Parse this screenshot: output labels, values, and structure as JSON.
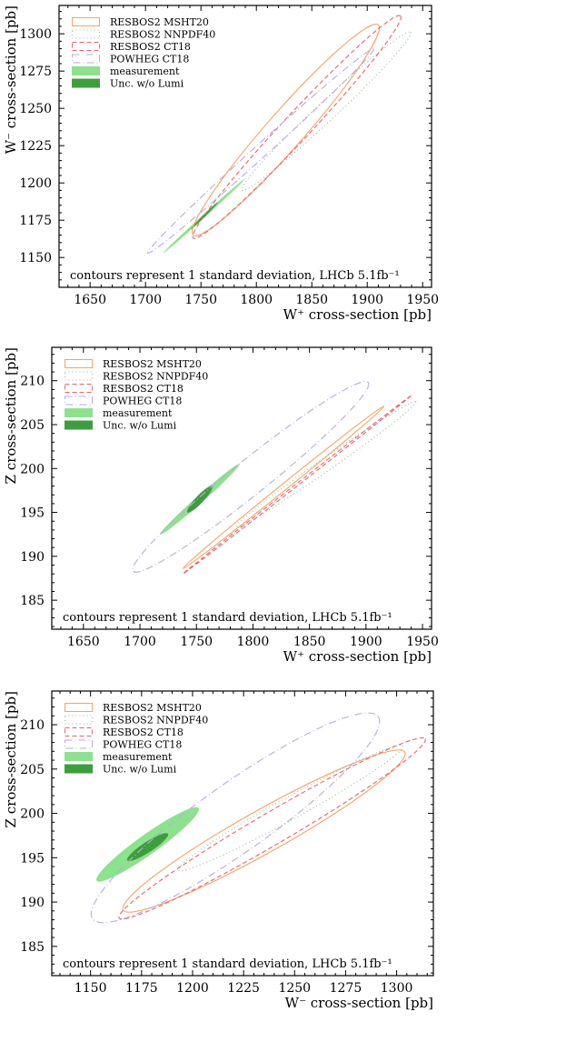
{
  "chart_data": [
    {
      "type": "scatter",
      "subtype": "covariance-ellipses",
      "xlabel": "W⁺ cross-section [pb]",
      "ylabel": "W⁻ cross-section [pb]",
      "xlim": [
        1622,
        1958
      ],
      "ylim": [
        1130,
        1319
      ],
      "xticks": [
        1650,
        1700,
        1750,
        1800,
        1850,
        1900,
        1950
      ],
      "yticks": [
        1150,
        1175,
        1200,
        1225,
        1250,
        1275,
        1300
      ],
      "annotation": "contours represent 1 standard deviation, LHCb 5.1fb⁻¹",
      "legend": [
        {
          "label": "RESBOS2 MSHT20",
          "kind": "line",
          "color": "#f4a460",
          "dash": "none"
        },
        {
          "label": "RESBOS2 NNPDF40",
          "kind": "line",
          "color": "#8fbc8f",
          "dash": "1,3"
        },
        {
          "label": "RESBOS2 CT18",
          "kind": "line",
          "color": "#e9636a",
          "dash": "5,3"
        },
        {
          "label": "POWHEG CT18",
          "kind": "line",
          "color": "#b9a9e6",
          "dash": "8,3,1,3"
        },
        {
          "label": "measurement",
          "kind": "fill",
          "color": "#8de28d"
        },
        {
          "label": "Unc. w/o Lumi",
          "kind": "fill",
          "color": "#3e9e3e"
        }
      ],
      "series": [
        {
          "name": "RESBOS2 MSHT20",
          "color": "#f4a460",
          "dash": "none",
          "fill": false,
          "ellipse": [
            [
              1827,
              1235
            ],
            [
              1743,
              1165
            ],
            [
              1910,
              1306
            ],
            [
              1906,
              1283
            ],
            [
              1752,
              1186
            ]
          ]
        },
        {
          "name": "RESBOS2 NNPDF40",
          "color": "#8fbc8f",
          "dash": "1,3",
          "fill": false,
          "ellipse": [
            [
              1863,
              1248
            ],
            [
              1787,
              1195
            ],
            [
              1939,
              1301
            ],
            [
              1933,
              1288
            ],
            [
              1793,
              1208
            ]
          ]
        },
        {
          "name": "RESBOS2 CT18",
          "color": "#e9636a",
          "dash": "5,3",
          "fill": false,
          "ellipse": [
            [
              1837,
              1238
            ],
            [
              1743,
              1163
            ],
            [
              1930,
              1312
            ],
            [
              1934,
              1302
            ],
            [
              1740,
              1173
            ]
          ]
        },
        {
          "name": "POWHEG CT18",
          "color": "#b9a9e6",
          "dash": "8,3,1,3",
          "fill": false,
          "ellipse": [
            [
              1804,
              1221
            ],
            [
              1702,
              1153
            ],
            [
              1906,
              1290
            ],
            [
              1898,
              1290
            ],
            [
              1710,
              1153
            ]
          ]
        },
        {
          "name": "measurement",
          "color": "#8de28d",
          "fill": true,
          "ellipse": [
            [
              1753,
              1178
            ],
            [
              1716,
              1153
            ],
            [
              1790,
              1203
            ],
            [
              1788,
              1203
            ],
            [
              1718,
              1153
            ]
          ]
        },
        {
          "name": "Unc. w/o Lumi",
          "color": "#3e9e3e",
          "fill": true,
          "ellipse": [
            [
              1753,
              1178
            ],
            [
              1741,
              1169
            ],
            [
              1765,
              1187
            ],
            [
              1765,
              1187
            ],
            [
              1741,
              1169
            ]
          ]
        }
      ]
    },
    {
      "type": "scatter",
      "subtype": "covariance-ellipses",
      "xlabel": "W⁺ cross-section [pb]",
      "ylabel": "Z cross-section [pb]",
      "xlim": [
        1622,
        1958
      ],
      "ylim": [
        181.7,
        213.8
      ],
      "xticks": [
        1650,
        1700,
        1750,
        1800,
        1850,
        1900,
        1950
      ],
      "yticks": [
        185,
        190,
        195,
        200,
        205,
        210
      ],
      "annotation": "contours represent 1 standard deviation, LHCb 5.1fb⁻¹",
      "legend": [
        {
          "label": "RESBOS2 MSHT20",
          "kind": "line",
          "color": "#f4a460",
          "dash": "none"
        },
        {
          "label": "RESBOS2 NNPDF40",
          "kind": "line",
          "color": "#8fbc8f",
          "dash": "1,3"
        },
        {
          "label": "RESBOS2 CT18",
          "kind": "line",
          "color": "#e9636a",
          "dash": "5,3"
        },
        {
          "label": "POWHEG CT18",
          "kind": "line",
          "color": "#b9a9e6",
          "dash": "8,3,1,3"
        },
        {
          "label": "measurement",
          "kind": "fill",
          "color": "#8de28d"
        },
        {
          "label": "Unc. w/o Lumi",
          "kind": "fill",
          "color": "#3e9e3e"
        }
      ],
      "series": [
        {
          "name": "RESBOS2 MSHT20",
          "color": "#f4a460",
          "dash": "none",
          "fill": false,
          "ellipse": [
            [
              1827,
              197.7
            ],
            [
              1738,
              188.6
            ],
            [
              1916,
              207.1
            ],
            [
              1913,
              207.1
            ],
            [
              1745,
              188.4
            ]
          ]
        },
        {
          "name": "RESBOS2 NNPDF40",
          "color": "#8fbc8f",
          "dash": "1,3",
          "fill": false,
          "ellipse": [
            [
              1864,
              200.6
            ],
            [
              1785,
              193.3
            ],
            [
              1944,
              207.6
            ],
            [
              1932,
              207.6
            ],
            [
              1791,
              193.1
            ]
          ]
        },
        {
          "name": "RESBOS2 CT18",
          "color": "#e9636a",
          "dash": "5,3",
          "fill": false,
          "ellipse": [
            [
              1839,
              198.3
            ],
            [
              1738,
              188.0
            ],
            [
              1940,
              208.3
            ],
            [
              1941,
              208.5
            ],
            [
              1742,
              187.9
            ]
          ]
        },
        {
          "name": "POWHEG CT18",
          "color": "#b9a9e6",
          "dash": "8,3,1,3",
          "fill": false,
          "ellipse": [
            [
              1798,
              199.1
            ],
            [
              1694,
              188.3
            ],
            [
              1902,
              209.8
            ],
            [
              1883,
              210.4
            ],
            [
              1710,
              187.9
            ]
          ]
        },
        {
          "name": "measurement",
          "color": "#8de28d",
          "fill": true,
          "ellipse": [
            [
              1753,
              196.5
            ],
            [
              1718,
              192.5
            ],
            [
              1788,
              200.5
            ],
            [
              1784,
              200.6
            ],
            [
              1722,
              192.3
            ]
          ]
        },
        {
          "name": "Unc. w/o Lumi",
          "color": "#3e9e3e",
          "fill": true,
          "ellipse": [
            [
              1753,
              196.5
            ],
            [
              1742,
              195.0
            ],
            [
              1764,
              198.0
            ],
            [
              1760,
              198.1
            ],
            [
              1746,
              194.9
            ]
          ]
        }
      ]
    },
    {
      "type": "scatter",
      "subtype": "covariance-ellipses",
      "xlabel": "W⁻ cross-section [pb]",
      "ylabel": "Z cross-section [pb]",
      "xlim": [
        1131,
        1318
      ],
      "ylim": [
        181.7,
        213.8
      ],
      "xticks": [
        1150,
        1175,
        1200,
        1225,
        1250,
        1275,
        1300
      ],
      "yticks": [
        185,
        190,
        195,
        200,
        205,
        210
      ],
      "annotation": "contours represent 1 standard deviation, LHCb 5.1fb⁻¹",
      "legend": [
        {
          "label": "RESBOS2 MSHT20",
          "kind": "line",
          "color": "#f4a460",
          "dash": "none"
        },
        {
          "label": "RESBOS2 NNPDF40",
          "kind": "line",
          "color": "#8fbc8f",
          "dash": "1,3"
        },
        {
          "label": "RESBOS2 CT18",
          "kind": "line",
          "color": "#e9636a",
          "dash": "5,3"
        },
        {
          "label": "POWHEG CT18",
          "kind": "line",
          "color": "#b9a9e6",
          "dash": "8,3,1,3"
        },
        {
          "label": "measurement",
          "kind": "fill",
          "color": "#8de28d"
        },
        {
          "label": "Unc. w/o Lumi",
          "kind": "fill",
          "color": "#3e9e3e"
        }
      ],
      "series": [
        {
          "name": "RESBOS2 MSHT20",
          "color": "#f4a460",
          "dash": "none",
          "fill": false,
          "ellipse": [
            [
              1235,
              198.0
            ],
            [
              1166,
              189.1
            ],
            [
              1304,
              206.9
            ],
            [
              1285,
              207.2
            ],
            [
              1185,
              188.8
            ]
          ]
        },
        {
          "name": "RESBOS2 NNPDF40",
          "color": "#8fbc8f",
          "dash": "1,3",
          "fill": false,
          "ellipse": [
            [
              1248,
              200.6
            ],
            [
              1193,
              193.6
            ],
            [
              1303,
              207.6
            ],
            [
              1295,
              208.0
            ],
            [
              1201,
              193.2
            ]
          ]
        },
        {
          "name": "RESBOS2 CT18",
          "color": "#e9636a",
          "dash": "5,3",
          "fill": false,
          "ellipse": [
            [
              1239,
              198.3
            ],
            [
              1164,
              188.2
            ],
            [
              1314,
              208.4
            ],
            [
              1300,
              208.6
            ],
            [
              1178,
              188.0
            ]
          ]
        },
        {
          "name": "POWHEG CT18",
          "color": "#b9a9e6",
          "dash": "8,3,1,3",
          "fill": false,
          "ellipse": [
            [
              1221,
              199.5
            ],
            [
              1151,
              188.1
            ],
            [
              1291,
              210.9
            ],
            [
              1262,
              210.9
            ],
            [
              1180,
              188.1
            ]
          ]
        },
        {
          "name": "measurement",
          "color": "#8de28d",
          "fill": true,
          "ellipse": [
            [
              1178,
              196.5
            ],
            [
              1153,
              192.4
            ],
            [
              1203,
              200.6
            ],
            [
              1197,
              201.0
            ],
            [
              1159,
              192.0
            ]
          ]
        },
        {
          "name": "Unc. w/o Lumi",
          "color": "#3e9e3e",
          "fill": true,
          "ellipse": [
            [
              1178,
              196.2
            ],
            [
              1168,
              194.7
            ],
            [
              1188,
              197.7
            ],
            [
              1184,
              197.8
            ],
            [
              1172,
              194.6
            ]
          ]
        }
      ]
    }
  ]
}
